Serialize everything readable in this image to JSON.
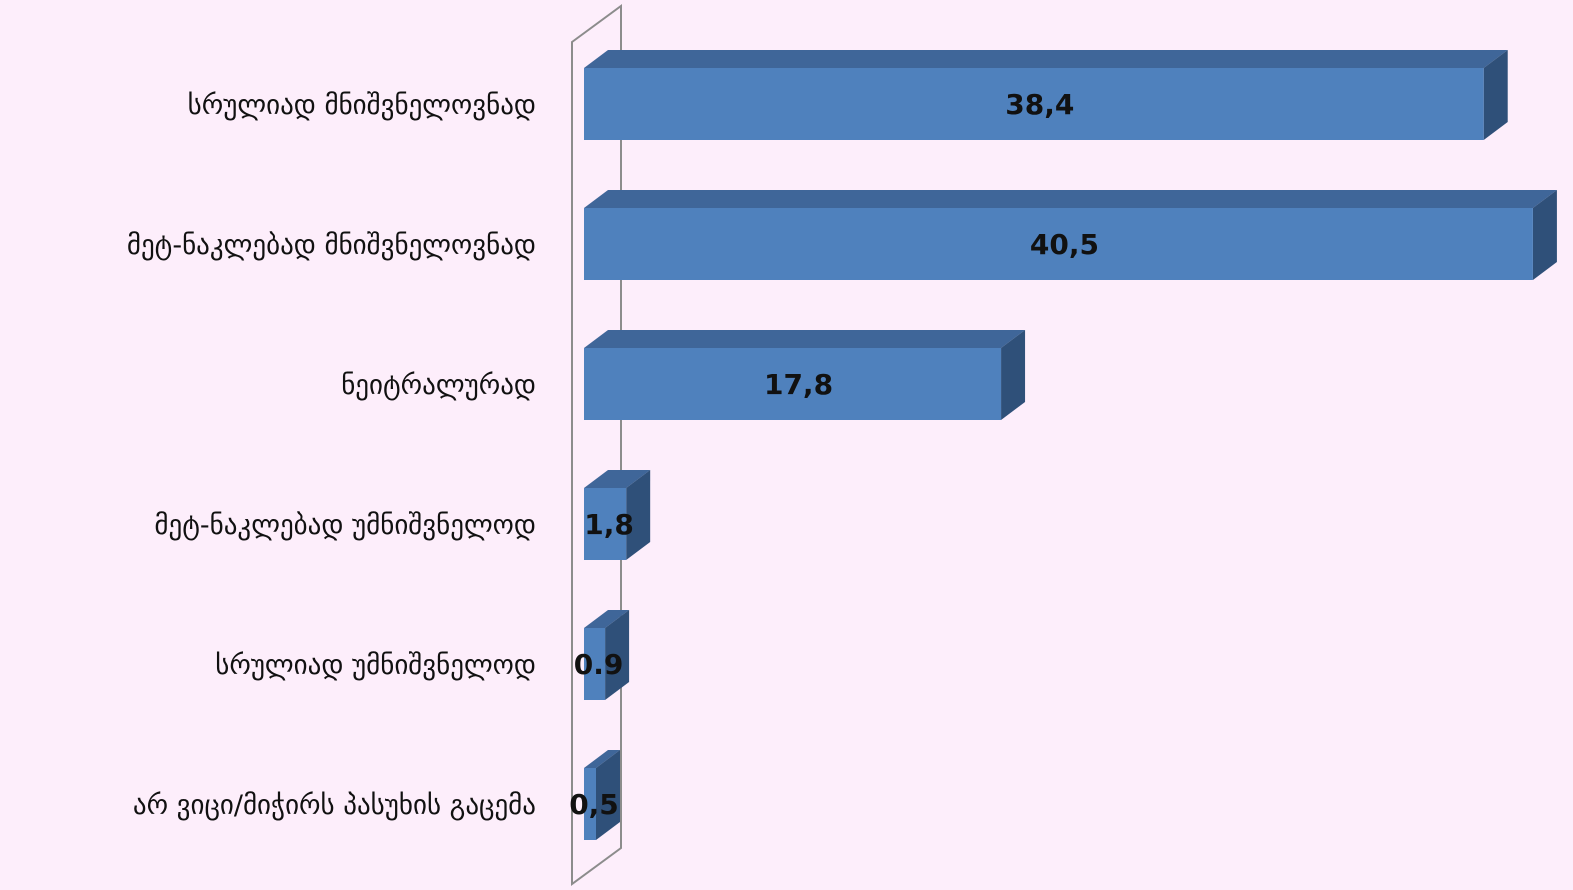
{
  "chart_data": {
    "type": "bar",
    "orientation": "horizontal",
    "style": "3d",
    "categories": [
      "სრულიად მნიშვნელოვნად",
      "მეტ-ნაკლებად მნიშვნელოვნად",
      "ნეიტრალურად",
      "მეტ-ნაკლებად უმნიშვნელოდ",
      "სრულიად უმნიშვნელოდ",
      "არ ვიცი/მიჭირს პასუხის გაცემა"
    ],
    "values": [
      38.4,
      40.5,
      17.8,
      1.8,
      0.9,
      0.5
    ],
    "value_labels": [
      "38,4",
      "40,5",
      "17,8",
      "1,8",
      "0.9",
      "0,5"
    ],
    "title": "",
    "xlabel": "",
    "ylabel": "",
    "grid": false,
    "legend": "none",
    "colors": {
      "background": "#fdeefb",
      "bar_front": "#4f81bd",
      "bar_top": "#3f6699",
      "bar_side": "#2f5079",
      "axis_wall": "#8c8c8c"
    }
  }
}
